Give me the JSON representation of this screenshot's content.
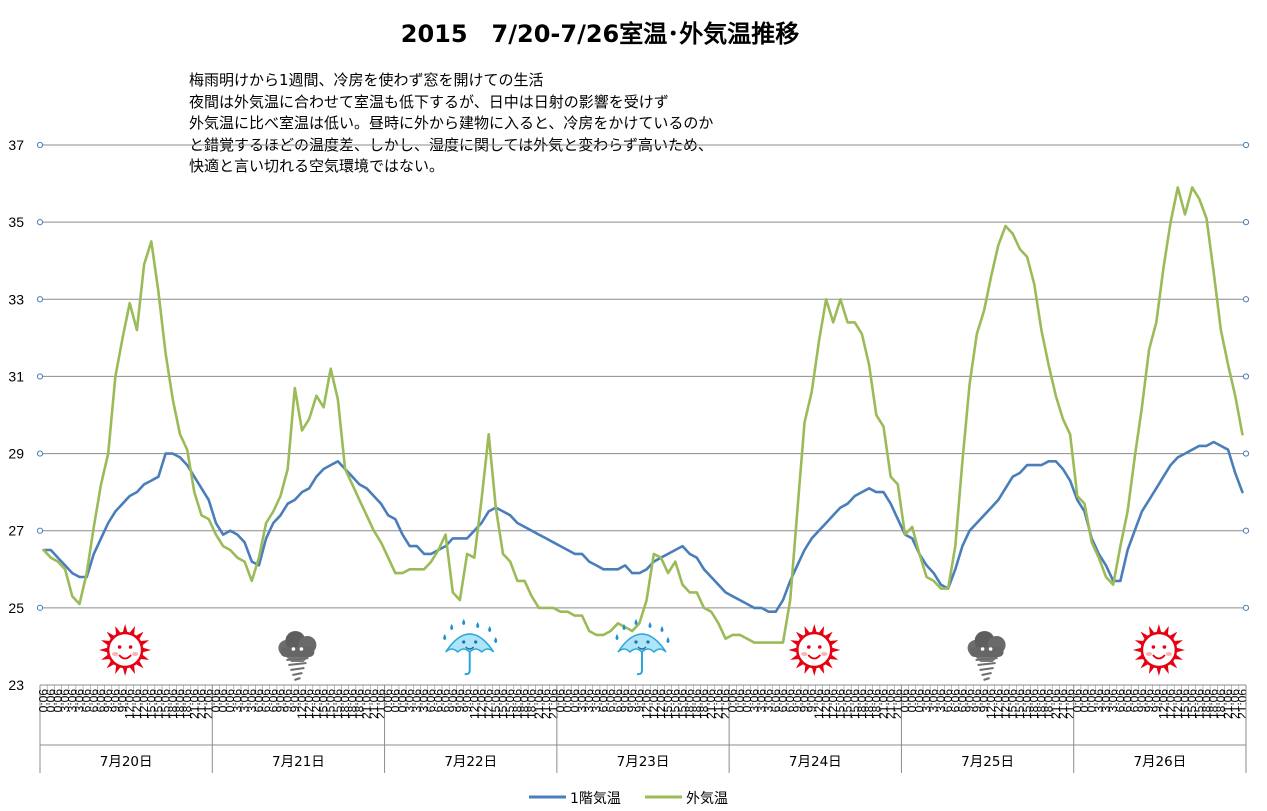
{
  "chart_data": {
    "type": "line",
    "title": "2015　7/20-7/26室温･外気温推移",
    "annotation_lines": [
      "梅雨明けから1週間、冷房を使わず窓を開けての生活",
      "夜間は外気温に合わせて室温も低下するが、日中は日射の影響を受けず",
      "外気温に比べ室温は低い。昼時に外から建物に入ると、冷房をかけているのか",
      "と錯覚するほどの温度差、しかし、湿度に関しては外気と変わらず高いため、",
      "快適と言い切れる空気環境ではない。"
    ],
    "ylim": [
      23,
      37
    ],
    "yticks": [
      23,
      25,
      27,
      29,
      31,
      33,
      35,
      37
    ],
    "grid": true,
    "legend_position": "bottom",
    "time_ticks": [
      "0:06",
      "3:06",
      "6:06",
      "9:06",
      "12:06",
      "15:06",
      "18:06",
      "21:06"
    ],
    "days": [
      "7月20日",
      "7月21日",
      "7月22日",
      "7月23日",
      "7月24日",
      "7月25日",
      "7月26日"
    ],
    "weather": [
      "sunny",
      "thunderstorm",
      "rain",
      "rain",
      "sunny",
      "thunderstorm",
      "sunny"
    ],
    "sample_interval_hours": 1,
    "series": [
      {
        "name": "1階気温",
        "color": "#4A7EBB",
        "values": [
          26.5,
          26.5,
          26.3,
          26.1,
          25.9,
          25.8,
          25.8,
          26.4,
          26.8,
          27.2,
          27.5,
          27.7,
          27.9,
          28.0,
          28.2,
          28.3,
          28.4,
          29.0,
          29.0,
          28.9,
          28.7,
          28.4,
          28.1,
          27.8,
          27.2,
          26.9,
          27.0,
          26.9,
          26.7,
          26.2,
          26.1,
          26.8,
          27.2,
          27.4,
          27.7,
          27.8,
          28.0,
          28.1,
          28.4,
          28.6,
          28.7,
          28.8,
          28.6,
          28.4,
          28.2,
          28.1,
          27.9,
          27.7,
          27.4,
          27.3,
          26.9,
          26.6,
          26.6,
          26.4,
          26.4,
          26.5,
          26.6,
          26.8,
          26.8,
          26.8,
          27.0,
          27.2,
          27.5,
          27.6,
          27.5,
          27.4,
          27.2,
          27.1,
          27.0,
          26.9,
          26.8,
          26.7,
          26.6,
          26.5,
          26.4,
          26.4,
          26.2,
          26.1,
          26.0,
          26.0,
          26.0,
          26.1,
          25.9,
          25.9,
          26.0,
          26.2,
          26.3,
          26.4,
          26.5,
          26.6,
          26.4,
          26.3,
          26.0,
          25.8,
          25.6,
          25.4,
          25.3,
          25.2,
          25.1,
          25.0,
          25.0,
          24.9,
          24.9,
          25.2,
          25.7,
          26.1,
          26.5,
          26.8,
          27.0,
          27.2,
          27.4,
          27.6,
          27.7,
          27.9,
          28.0,
          28.1,
          28.0,
          28.0,
          27.7,
          27.3,
          26.9,
          26.8,
          26.4,
          26.1,
          25.9,
          25.6,
          25.5,
          26.0,
          26.6,
          27.0,
          27.2,
          27.4,
          27.6,
          27.8,
          28.1,
          28.4,
          28.5,
          28.7,
          28.7,
          28.7,
          28.8,
          28.8,
          28.6,
          28.3,
          27.8,
          27.5,
          26.8,
          26.4,
          26.1,
          25.7,
          25.7,
          26.5,
          27.0,
          27.5,
          27.8,
          28.1,
          28.4,
          28.7,
          28.9,
          29.0,
          29.1,
          29.2,
          29.2,
          29.3,
          29.2,
          29.1,
          28.5,
          28.0
        ]
      },
      {
        "name": "外気温",
        "color": "#9BBB59",
        "values": [
          26.5,
          26.3,
          26.2,
          26.0,
          25.3,
          25.1,
          25.9,
          27.1,
          28.2,
          29.0,
          31.0,
          32.0,
          32.9,
          32.2,
          33.9,
          34.5,
          33.2,
          31.6,
          30.4,
          29.5,
          29.1,
          28.0,
          27.4,
          27.3,
          26.9,
          26.6,
          26.5,
          26.3,
          26.2,
          25.7,
          26.3,
          27.2,
          27.5,
          27.9,
          28.6,
          30.7,
          29.6,
          29.9,
          30.5,
          30.2,
          31.2,
          30.4,
          28.6,
          28.2,
          27.8,
          27.4,
          27.0,
          26.7,
          26.3,
          25.9,
          25.9,
          26.0,
          26.0,
          26.0,
          26.2,
          26.5,
          26.9,
          25.4,
          25.2,
          26.4,
          26.3,
          27.8,
          29.5,
          27.6,
          26.4,
          26.2,
          25.7,
          25.7,
          25.3,
          25.0,
          25.0,
          25.0,
          24.9,
          24.9,
          24.8,
          24.8,
          24.4,
          24.3,
          24.3,
          24.4,
          24.6,
          24.5,
          24.4,
          24.6,
          25.2,
          26.4,
          26.3,
          25.9,
          26.2,
          25.6,
          25.4,
          25.4,
          25.0,
          24.9,
          24.6,
          24.2,
          24.3,
          24.3,
          24.2,
          24.1,
          24.1,
          24.1,
          24.1,
          24.1,
          25.2,
          27.5,
          29.8,
          30.6,
          31.9,
          33.0,
          32.4,
          33.0,
          32.4,
          32.4,
          32.1,
          31.3,
          30.0,
          29.7,
          28.4,
          28.2,
          26.9,
          27.1,
          26.4,
          25.8,
          25.7,
          25.5,
          25.5,
          26.6,
          28.8,
          30.8,
          32.1,
          32.7,
          33.6,
          34.4,
          34.9,
          34.7,
          34.3,
          34.1,
          33.4,
          32.2,
          31.3,
          30.5,
          29.9,
          29.5,
          27.9,
          27.7,
          26.7,
          26.3,
          25.8,
          25.6,
          26.6,
          27.5,
          28.9,
          30.2,
          31.7,
          32.4,
          33.8,
          35.0,
          35.9,
          35.2,
          35.9,
          35.6,
          35.1,
          33.7,
          32.2,
          31.3,
          30.5,
          29.5
        ]
      }
    ]
  }
}
